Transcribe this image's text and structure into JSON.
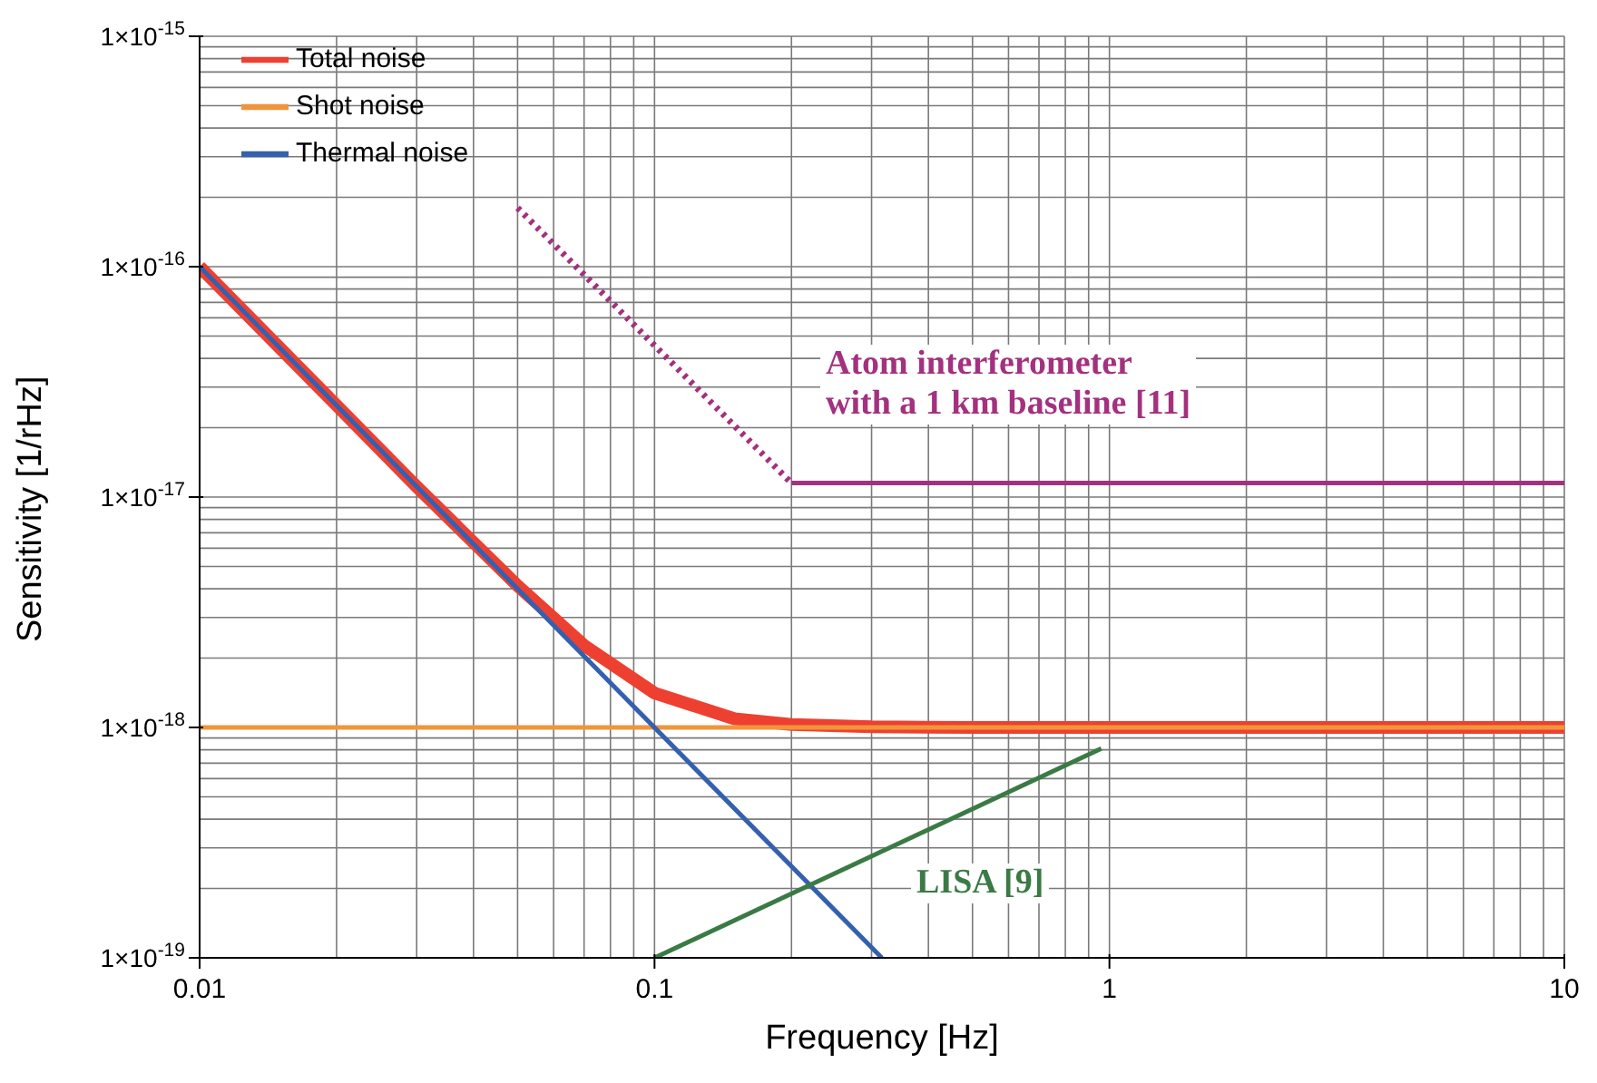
{
  "chart_data": {
    "type": "line",
    "xlabel": "Frequency [Hz]",
    "ylabel": "Sensitivity [1/rHz]",
    "log": "xy",
    "grid": true,
    "legend": "top left",
    "xlim": [
      0.01,
      10
    ],
    "ylim": [
      1e-19,
      1e-15
    ],
    "xticks": [
      0.01,
      {
        "value": 0.02,
        "label": null
      },
      {
        "value": 0.03,
        "label": null
      },
      {
        "value": 0.04,
        "label": null
      },
      {
        "value": 0.05,
        "label": null
      },
      {
        "value": 0.06,
        "label": null
      },
      {
        "value": 0.07,
        "label": null
      },
      {
        "value": 0.08,
        "label": null
      },
      {
        "value": 0.09,
        "label": null
      },
      0.1,
      {
        "value": 0.2,
        "label": null
      },
      {
        "value": 0.3,
        "label": null
      },
      {
        "value": 0.4,
        "label": null
      },
      {
        "value": 0.5,
        "label": null
      },
      {
        "value": 0.6,
        "label": null
      },
      {
        "value": 0.7,
        "label": null
      },
      {
        "value": 0.8,
        "label": null
      },
      {
        "value": 0.9,
        "label": null
      },
      1,
      {
        "value": 2,
        "label": null
      },
      {
        "value": 3,
        "label": null
      },
      {
        "value": 4,
        "label": null
      },
      {
        "value": 5,
        "label": null
      },
      {
        "value": 6,
        "label": null
      },
      {
        "value": 7,
        "label": null
      },
      {
        "value": 8,
        "label": null
      },
      {
        "value": 9,
        "label": null
      },
      10
    ],
    "yticks": [
      {
        "value": 1e-19,
        "label": "1×10$^{-19}$"
      },
      {
        "value": 2e-19,
        "label": null
      },
      {
        "value": 3e-19,
        "label": null
      },
      {
        "value": 4e-19,
        "label": null
      },
      {
        "value": 5e-19,
        "label": null
      },
      {
        "value": 6e-19,
        "label": null
      },
      {
        "value": 7e-19,
        "label": null
      },
      {
        "value": 8e-19,
        "label": null
      },
      {
        "value": 9e-19,
        "label": null
      },
      {
        "value": 1e-18,
        "label": "1×10$^{-18}$"
      },
      {
        "value": 2e-18,
        "label": null
      },
      {
        "value": 3e-18,
        "label": null
      },
      {
        "value": 4e-18,
        "label": null
      },
      {
        "value": 5e-18,
        "label": null
      },
      {
        "value": 6e-18,
        "label": null
      },
      {
        "value": 7e-18,
        "label": null
      },
      {
        "value": 8e-18,
        "label": null
      },
      {
        "value": 9e-18,
        "label": null
      },
      {
        "value": 1e-17,
        "label": "1×10$^{-17}$"
      },
      {
        "value": 2e-17,
        "label": null
      },
      {
        "value": 3e-17,
        "label": null
      },
      {
        "value": 4e-17,
        "label": null
      },
      {
        "value": 5e-17,
        "label": null
      },
      {
        "value": 6e-17,
        "label": null
      },
      {
        "value": 7e-17,
        "label": null
      },
      {
        "value": 8e-17,
        "label": null
      },
      {
        "value": 9e-17,
        "label": null
      },
      {
        "value": 1e-16,
        "label": "1×10$^{-16}$"
      },
      {
        "value": 2e-16,
        "label": null
      },
      {
        "value": 3e-16,
        "label": null
      },
      {
        "value": 4e-16,
        "label": null
      },
      {
        "value": 5e-16,
        "label": null
      },
      {
        "value": 6e-16,
        "label": null
      },
      {
        "value": 7e-16,
        "label": null
      },
      {
        "value": 8e-16,
        "label": null
      },
      {
        "value": 9e-16,
        "label": null
      },
      {
        "value": 1e-15,
        "label": "1×10$^{-15}$"
      }
    ],
    "series": [
      {
        "name": "Total noise",
        "color": "#ee4030",
        "line_style": "solid",
        "x": [
          0.01,
          0.02,
          0.03,
          0.05,
          0.07,
          0.1,
          0.15,
          0.2,
          0.3,
          0.5,
          1,
          10
        ],
        "values": [
          1e-16,
          2.5e-17,
          1.11e-17,
          4.12e-18,
          2.27e-18,
          1.41e-18,
          1.09e-18,
          1.03e-18,
          1.006e-18,
          1e-18,
          1e-18,
          1e-18
        ]
      },
      {
        "name": "Shot noise",
        "color": "#f0953c",
        "line_style": "solid",
        "x": [
          0.01,
          10
        ],
        "values": [
          1e-18,
          1e-18
        ]
      },
      {
        "name": "Thermal noise",
        "color": "#3560b0",
        "line_style": "solid",
        "x": [
          0.01,
          0.316
        ],
        "values": [
          1e-16,
          1e-19
        ]
      },
      {
        "color": "#a3317f",
        "line_style": "dotted",
        "x": [
          0.05,
          0.2
        ],
        "values": [
          1.8e-16,
          1.15e-17
        ]
      },
      {
        "color": "#a3317f",
        "line_style": "solid",
        "x": [
          0.2,
          10
        ],
        "values": [
          1.15e-17,
          1.15e-17
        ]
      },
      {
        "color": "#3a7a45",
        "line_style": "solid",
        "x": [
          0.1,
          0.96
        ],
        "values": [
          1e-19,
          8.1e-19
        ]
      }
    ],
    "annotations": [
      "Atom interferometer\nwith a 1 km baseline [11]",
      "LISA [9]"
    ]
  }
}
